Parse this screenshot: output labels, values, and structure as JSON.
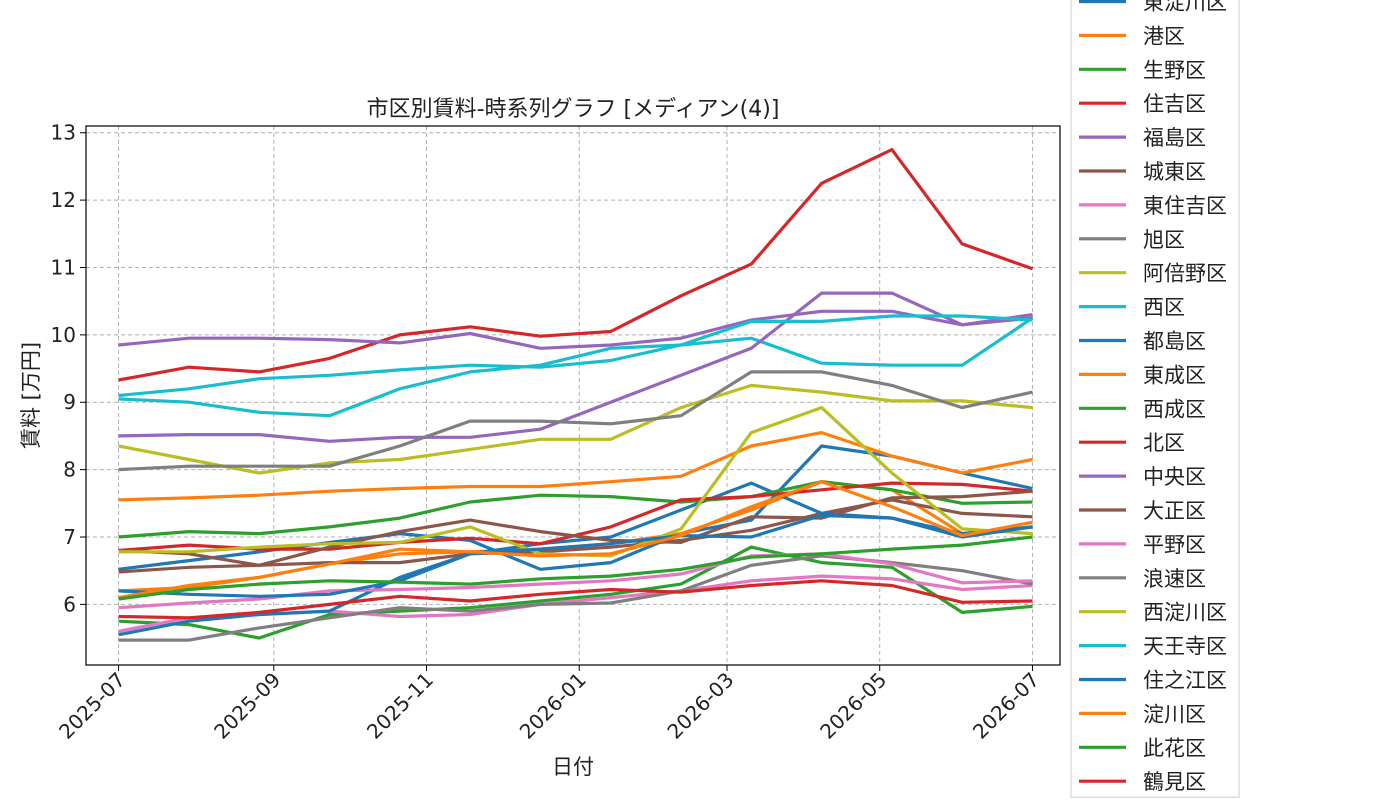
{
  "chart_data": {
    "type": "line",
    "title": "市区別賃料-時系列グラフ [メディアン(4)]",
    "xlabel": "日付",
    "ylabel": "賃料 [万円]",
    "ylim": [
      5.1,
      13.1
    ],
    "xlim": [
      "2025-06-18",
      "2026-07-12"
    ],
    "yticks": [
      6,
      7,
      8,
      9,
      10,
      11,
      12,
      13
    ],
    "xticks": [
      "2025-07",
      "2025-09",
      "2025-11",
      "2026-01",
      "2026-03",
      "2026-05",
      "2026-07"
    ],
    "x_start": "2025-07-01",
    "x_end": "2026-07-01",
    "grid": true,
    "legend_position": "right, outside plot",
    "series": [
      {
        "name": "東淀川区",
        "color": "#1f77b4",
        "values": [
          6.52,
          6.65,
          6.78,
          6.92,
          7.05,
          6.95,
          6.52,
          6.62,
          7.05,
          7.25,
          8.35,
          8.2,
          7.95,
          7.72
        ]
      },
      {
        "name": "港区",
        "color": "#ff7f0e",
        "values": [
          6.2,
          6.25,
          6.4,
          6.6,
          6.75,
          6.78,
          6.82,
          6.9,
          7.05,
          7.4,
          7.82,
          7.7,
          7.05,
          7.15
        ]
      },
      {
        "name": "生野区",
        "color": "#2ca02c",
        "values": [
          5.75,
          5.7,
          5.5,
          5.85,
          5.9,
          5.95,
          6.05,
          6.15,
          6.3,
          6.85,
          6.62,
          6.55,
          5.88,
          5.97
        ]
      },
      {
        "name": "住吉区",
        "color": "#d62728",
        "values": [
          9.33,
          9.52,
          9.45,
          9.65,
          10.0,
          10.12,
          9.98,
          10.05,
          10.58,
          11.05,
          12.25,
          12.75,
          11.35,
          10.98
        ]
      },
      {
        "name": "福島区",
        "color": "#9467bd",
        "values": [
          9.85,
          9.95,
          9.95,
          9.93,
          9.88,
          10.02,
          9.8,
          9.85,
          9.95,
          10.22,
          10.35,
          10.35,
          10.15,
          10.3
        ]
      },
      {
        "name": "城東区",
        "color": "#8c564b",
        "values": [
          6.48,
          6.55,
          6.58,
          6.62,
          6.62,
          6.75,
          6.78,
          6.85,
          6.95,
          7.1,
          7.35,
          7.55,
          7.35,
          7.3
        ]
      },
      {
        "name": "東住吉区",
        "color": "#e377c2",
        "values": [
          5.6,
          5.8,
          5.85,
          5.9,
          5.82,
          5.85,
          6.0,
          6.1,
          6.2,
          6.35,
          6.42,
          6.38,
          6.22,
          6.28
        ]
      },
      {
        "name": "旭区",
        "color": "#7f7f7f",
        "values": [
          5.47,
          5.47,
          5.65,
          5.8,
          5.95,
          5.9,
          6.0,
          6.02,
          6.2,
          6.58,
          6.72,
          6.62,
          6.5,
          6.3
        ]
      },
      {
        "name": "阿倍野区",
        "color": "#bcbd22",
        "values": [
          8.35,
          8.15,
          7.95,
          8.1,
          8.15,
          8.3,
          8.45,
          8.45,
          8.92,
          9.25,
          9.15,
          9.02,
          9.02,
          8.92
        ]
      },
      {
        "name": "西区",
        "color": "#17becf",
        "values": [
          9.05,
          9.0,
          8.85,
          8.8,
          9.2,
          9.45,
          9.55,
          9.8,
          9.85,
          9.95,
          9.58,
          9.55,
          9.55,
          10.25
        ]
      },
      {
        "name": "都島区",
        "color": "#1f77b4",
        "values": [
          5.55,
          5.75,
          5.85,
          5.9,
          6.4,
          6.75,
          6.9,
          7.0,
          7.4,
          7.8,
          7.35,
          7.28,
          7.05,
          7.15
        ]
      },
      {
        "name": "東成区",
        "color": "#ff7f0e",
        "values": [
          7.55,
          7.58,
          7.62,
          7.68,
          7.72,
          7.75,
          7.75,
          7.82,
          7.9,
          8.35,
          8.55,
          8.2,
          7.95,
          8.15
        ]
      },
      {
        "name": "西成区",
        "color": "#2ca02c",
        "values": [
          7.0,
          7.08,
          7.05,
          7.15,
          7.28,
          7.52,
          7.62,
          7.6,
          7.52,
          7.6,
          7.82,
          7.7,
          7.5,
          7.52
        ]
      },
      {
        "name": "北区",
        "color": "#d62728",
        "values": [
          6.8,
          6.88,
          6.82,
          6.82,
          6.92,
          6.98,
          6.9,
          7.15,
          7.55,
          7.6,
          7.7,
          7.8,
          7.78,
          7.68
        ]
      },
      {
        "name": "中央区",
        "color": "#9467bd",
        "values": [
          8.5,
          8.52,
          8.52,
          8.42,
          8.48,
          8.48,
          8.6,
          9.0,
          9.4,
          9.8,
          10.62,
          10.62,
          10.15,
          10.25
        ]
      },
      {
        "name": "大正区",
        "color": "#8c564b",
        "values": [
          6.8,
          6.75,
          6.58,
          6.85,
          7.08,
          7.25,
          7.08,
          6.95,
          6.92,
          7.3,
          7.28,
          7.58,
          7.6,
          7.68
        ]
      },
      {
        "name": "平野区",
        "color": "#e377c2",
        "values": [
          5.95,
          6.02,
          6.08,
          6.2,
          6.22,
          6.25,
          6.3,
          6.35,
          6.45,
          6.72,
          6.75,
          6.6,
          6.32,
          6.35
        ]
      },
      {
        "name": "浪速区",
        "color": "#7f7f7f",
        "values": [
          8.0,
          8.05,
          8.05,
          8.05,
          8.35,
          8.72,
          8.72,
          8.68,
          8.8,
          9.45,
          9.45,
          9.25,
          8.92,
          9.15
        ]
      },
      {
        "name": "西淀川区",
        "color": "#bcbd22",
        "values": [
          6.78,
          6.78,
          6.85,
          6.9,
          6.92,
          7.15,
          6.75,
          6.72,
          7.12,
          8.55,
          8.92,
          7.95,
          7.12,
          7.05
        ]
      },
      {
        "name": "天王寺区",
        "color": "#17becf",
        "values": [
          9.1,
          9.2,
          9.35,
          9.4,
          9.48,
          9.55,
          9.52,
          9.62,
          9.85,
          10.2,
          10.2,
          10.28,
          10.28,
          10.22
        ]
      },
      {
        "name": "住之江区",
        "color": "#1f77b4",
        "values": [
          6.2,
          6.15,
          6.12,
          6.15,
          6.35,
          6.75,
          6.82,
          6.9,
          7.02,
          7.0,
          7.32,
          7.28,
          7.0,
          7.15
        ]
      },
      {
        "name": "淀川区",
        "color": "#ff7f0e",
        "values": [
          6.1,
          6.28,
          6.4,
          6.6,
          6.82,
          6.78,
          6.72,
          6.75,
          7.02,
          7.45,
          7.82,
          7.45,
          7.02,
          7.22
        ]
      },
      {
        "name": "此花区",
        "color": "#2ca02c",
        "values": [
          6.08,
          6.22,
          6.3,
          6.35,
          6.33,
          6.3,
          6.38,
          6.42,
          6.52,
          6.7,
          6.75,
          6.82,
          6.88,
          7.0
        ]
      },
      {
        "name": "鶴見区",
        "color": "#d62728",
        "values": [
          5.82,
          5.8,
          5.88,
          6.0,
          6.12,
          6.05,
          6.15,
          6.22,
          6.18,
          6.28,
          6.35,
          6.28,
          6.03,
          6.05
        ]
      }
    ]
  }
}
